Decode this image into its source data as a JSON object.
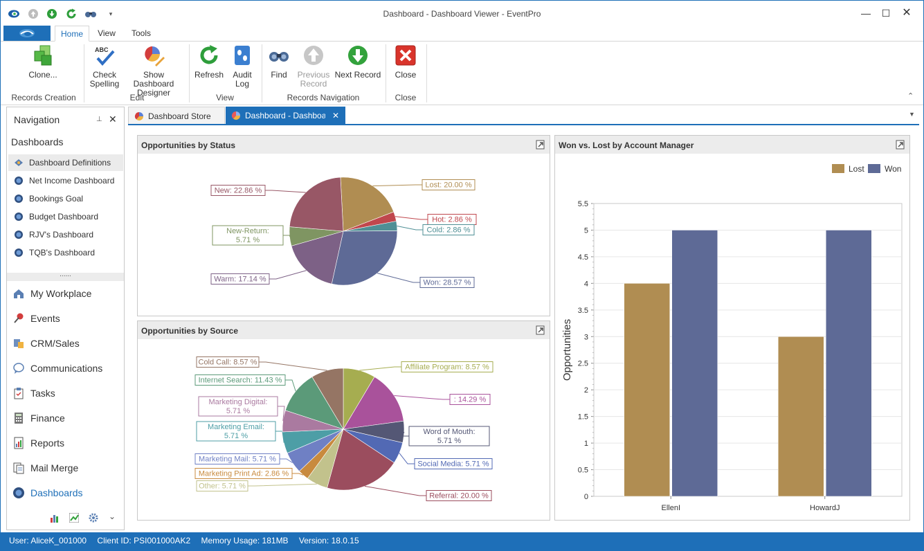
{
  "window": {
    "title": "Dashboard - Dashboard Viewer - EventPro"
  },
  "ribbon_tabs": [
    "Home",
    "View",
    "Tools"
  ],
  "ribbon": {
    "buttons": {
      "clone": "Clone...",
      "check_spelling_1": "Check",
      "check_spelling_2": "Spelling",
      "show_designer_1": "Show Dashboard",
      "show_designer_2": "Designer",
      "refresh": "Refresh",
      "audit_log_1": "Audit",
      "audit_log_2": "Log",
      "find": "Find",
      "previous_record_1": "Previous",
      "previous_record_2": "Record",
      "next_record": "Next Record",
      "close": "Close"
    },
    "groups": {
      "records_creation": "Records Creation",
      "edit": "Edit",
      "view": "View",
      "records_navigation": "Records Navigation",
      "close": "Close"
    }
  },
  "navigation": {
    "title": "Navigation",
    "section": "Dashboards",
    "dashboards": [
      "Dashboard Definitions",
      "Net Income Dashboard",
      "Bookings Goal",
      "Budget Dashboard",
      "RJV's Dashboard",
      "TQB's Dashboard"
    ],
    "splitter": "......",
    "modules": [
      "My Workplace",
      "Events",
      "CRM/Sales",
      "Communications",
      "Tasks",
      "Finance",
      "Reports",
      "Mail Merge",
      "Dashboards"
    ]
  },
  "doc_tabs": [
    "Dashboard Store",
    "Dashboard - Dashboarc"
  ],
  "panels": {
    "status_title": "Opportunities by Status",
    "source_title": "Opportunities by Source",
    "winlost_title": "Won vs. Lost by Account Manager"
  },
  "status_bar": {
    "user": "User: AliceK_001000",
    "client": "Client ID: PSI001000AK2",
    "memory": "Memory Usage: 181MB",
    "version": "Version: 18.0.15"
  },
  "chart_data": [
    {
      "type": "pie",
      "title": "Opportunities by Status",
      "slices": [
        {
          "label": "Lost: 20.00 %",
          "value": 20.0,
          "color": "#b08d52"
        },
        {
          "label": "Hot: 2.86 %",
          "value": 2.86,
          "color": "#c0474d"
        },
        {
          "label": "Cold: 2.86 %",
          "value": 2.86,
          "color": "#4f8f95"
        },
        {
          "label": "Won: 28.57 %",
          "value": 28.57,
          "color": "#5e6a96"
        },
        {
          "label": "Warm: 17.14 %",
          "value": 17.14,
          "color": "#7d6186"
        },
        {
          "label": "New-Return:\n5.71 %",
          "value": 5.71,
          "color": "#7f9562"
        },
        {
          "label": "New: 22.86 %",
          "value": 22.86,
          "color": "#985766"
        }
      ]
    },
    {
      "type": "pie",
      "title": "Opportunities by Source",
      "slices": [
        {
          "label": "Affiliate Program: 8.57 %",
          "value": 8.57,
          "color": "#a6ad50"
        },
        {
          "label": ": 14.29 %",
          "value": 14.29,
          "color": "#a9529b"
        },
        {
          "label": "Word of Mouth:\n5.71 %",
          "value": 5.71,
          "color": "#545775"
        },
        {
          "label": "Social Media: 5.71 %",
          "value": 5.71,
          "color": "#5269b4"
        },
        {
          "label": "Referral: 20.00 %",
          "value": 20.0,
          "color": "#9b4d5e"
        },
        {
          "label": "Other: 5.71 %",
          "value": 5.71,
          "color": "#c2c28c"
        },
        {
          "label": "Marketing Print Ad: 2.86 %",
          "value": 2.86,
          "color": "#c88a3e"
        },
        {
          "label": "Marketing Mail: 5.71 %",
          "value": 5.71,
          "color": "#6f80c4"
        },
        {
          "label": "Marketing Email:\n5.71 %",
          "value": 5.71,
          "color": "#4d9ea6"
        },
        {
          "label": "Marketing Digital:\n5.71 %",
          "value": 5.71,
          "color": "#aa7aa0"
        },
        {
          "label": "Internet Search: 11.43 %",
          "value": 11.43,
          "color": "#5b9a79"
        },
        {
          "label": "Cold Call: 8.57 %",
          "value": 8.57,
          "color": "#957564"
        }
      ]
    },
    {
      "type": "bar",
      "title": "Won vs. Lost by Account Manager",
      "categories": [
        "EllenI",
        "HowardJ"
      ],
      "series": [
        {
          "name": "Lost",
          "values": [
            4,
            3
          ],
          "color": "#b08d52"
        },
        {
          "name": "Won",
          "values": [
            5,
            5
          ],
          "color": "#5e6a96"
        }
      ],
      "ylabel": "Opportunities",
      "ylim": [
        0,
        5.5
      ],
      "yticks": [
        "0",
        "0.5",
        "1",
        "1.5",
        "2",
        "2.5",
        "3",
        "3.5",
        "4",
        "4.5",
        "5",
        "5.5"
      ],
      "legend": "top-right",
      "grid": true
    }
  ]
}
